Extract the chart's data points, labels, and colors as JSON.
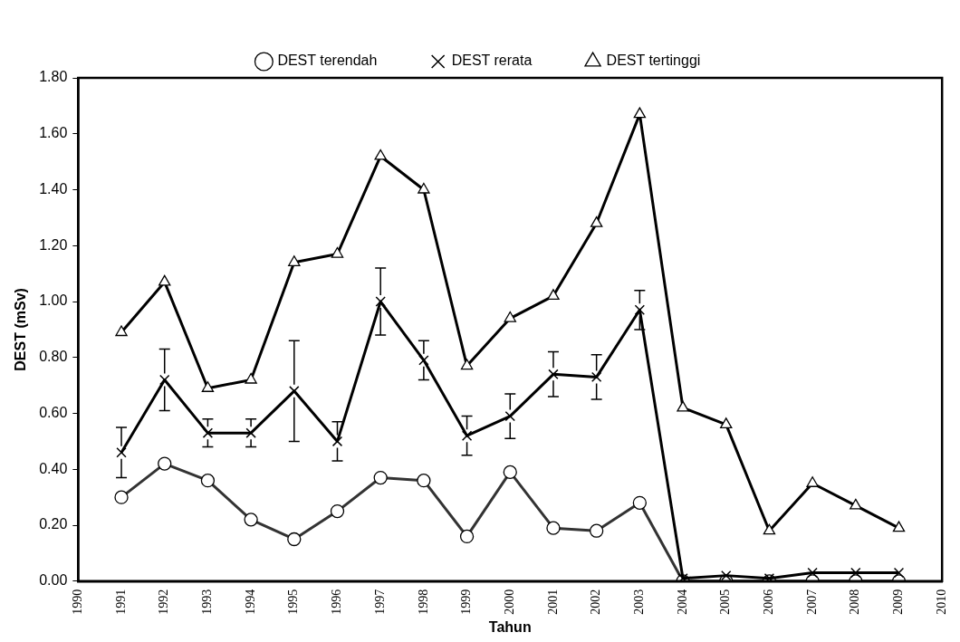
{
  "chart_data": {
    "type": "line",
    "xlabel": "Tahun",
    "ylabel": "DEST (mSv)",
    "x": [
      1991,
      1992,
      1993,
      1994,
      1995,
      1996,
      1997,
      1998,
      1999,
      2000,
      2001,
      2002,
      2003,
      2004,
      2005,
      2006,
      2007,
      2008,
      2009
    ],
    "series": [
      {
        "name": "DEST terendah",
        "color": "#333333",
        "marker": "circle",
        "values": [
          0.3,
          0.42,
          0.36,
          0.22,
          0.15,
          0.25,
          0.37,
          0.36,
          0.16,
          0.39,
          0.19,
          0.18,
          0.28,
          0.0,
          0.0,
          0.0,
          0.0,
          0.0,
          0.0
        ]
      },
      {
        "name": "DEST rerata",
        "color": "#000000",
        "marker": "cross",
        "values": [
          0.46,
          0.72,
          0.53,
          0.53,
          0.68,
          0.5,
          1.0,
          0.79,
          0.52,
          0.59,
          0.74,
          0.73,
          0.97,
          0.01,
          0.02,
          0.01,
          0.03,
          0.03,
          0.03
        ],
        "errors": [
          [
            0.37,
            0.55
          ],
          [
            0.61,
            0.83
          ],
          [
            0.48,
            0.58
          ],
          [
            0.48,
            0.58
          ],
          [
            0.5,
            0.86
          ],
          [
            0.43,
            0.57
          ],
          [
            0.88,
            1.12
          ],
          [
            0.72,
            0.86
          ],
          [
            0.45,
            0.59
          ],
          [
            0.51,
            0.67
          ],
          [
            0.66,
            0.82
          ],
          [
            0.65,
            0.81
          ],
          [
            0.9,
            1.04
          ],
          null,
          null,
          null,
          null,
          null,
          null
        ]
      },
      {
        "name": "DEST tertinggi",
        "color": "#000000",
        "marker": "triangle",
        "values": [
          0.89,
          1.07,
          0.69,
          0.72,
          1.14,
          1.17,
          1.52,
          1.4,
          0.77,
          0.94,
          1.02,
          1.28,
          1.67,
          0.62,
          0.56,
          0.18,
          0.35,
          0.27,
          0.19
        ]
      }
    ],
    "xlim": [
      1990,
      2010
    ],
    "xticks": [
      1990,
      1991,
      1992,
      1993,
      1994,
      1995,
      1996,
      1997,
      1998,
      1999,
      2000,
      2001,
      2002,
      2003,
      2004,
      2005,
      2006,
      2007,
      2008,
      2009,
      2010
    ],
    "ylim": [
      0,
      1.8
    ],
    "yticks": [
      {
        "value": 0,
        "label": "0.00"
      },
      {
        "value": 0.2,
        "label": "0.20"
      },
      {
        "value": 0.4,
        "label": "0.40"
      },
      {
        "value": 0.6,
        "label": "0.60"
      },
      {
        "value": 0.8,
        "label": "0.80"
      },
      {
        "value": 1,
        "label": "1.00"
      },
      {
        "value": 1.2,
        "label": "1.20"
      },
      {
        "value": 1.4,
        "label": "1.40"
      },
      {
        "value": 1.6,
        "label": "1.60"
      },
      {
        "value": 1.8,
        "label": "1.80"
      }
    ],
    "grid": false,
    "legend": "top",
    "line_style": "solid"
  }
}
